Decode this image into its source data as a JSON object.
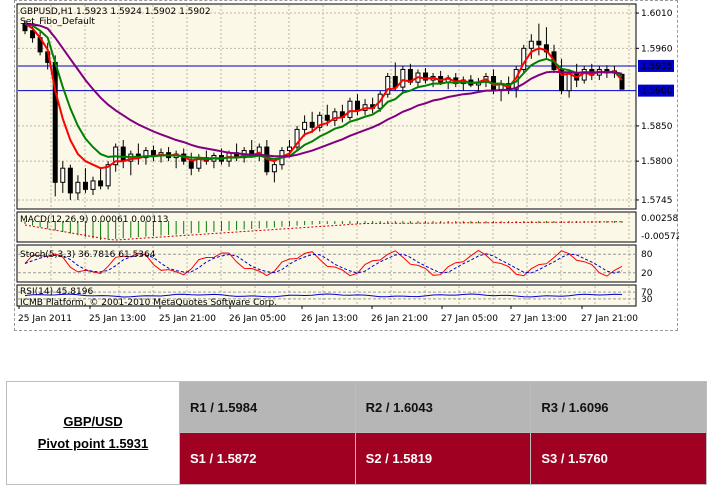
{
  "chart_data": {
    "type": "candlestick",
    "symbol_header": "GBPUSD,H1  1.5923 1.5924 1.5902 1.5902",
    "indicator_name": "Set_Fibo_Default",
    "price_axis_ticks": [
      "1.6010",
      "1.5960",
      "1.5935",
      "1.5900",
      "1.5850",
      "1.5800",
      "1.5745"
    ],
    "highlighted_levels": [
      "1.5935",
      "1.5900"
    ],
    "ylim": [
      1.5735,
      1.602
    ],
    "time_axis_ticks": [
      "25 Jan 2011",
      "25 Jan 13:00",
      "25 Jan 21:00",
      "26 Jan 05:00",
      "26 Jan 13:00",
      "26 Jan 21:00",
      "27 Jan 05:00",
      "27 Jan 13:00",
      "27 Jan 21:00"
    ],
    "candles": [
      {
        "o": 1.5995,
        "h": 1.6,
        "l": 1.598,
        "c": 1.5985
      },
      {
        "o": 1.5985,
        "h": 1.5998,
        "l": 1.5968,
        "c": 1.5975
      },
      {
        "o": 1.5975,
        "h": 1.5985,
        "l": 1.595,
        "c": 1.5955
      },
      {
        "o": 1.5955,
        "h": 1.5968,
        "l": 1.593,
        "c": 1.594
      },
      {
        "o": 1.594,
        "h": 1.595,
        "l": 1.575,
        "c": 1.577
      },
      {
        "o": 1.577,
        "h": 1.58,
        "l": 1.5755,
        "c": 1.579
      },
      {
        "o": 1.579,
        "h": 1.5795,
        "l": 1.5745,
        "c": 1.5755
      },
      {
        "o": 1.5755,
        "h": 1.578,
        "l": 1.5745,
        "c": 1.577
      },
      {
        "o": 1.577,
        "h": 1.579,
        "l": 1.5755,
        "c": 1.576
      },
      {
        "o": 1.576,
        "h": 1.5778,
        "l": 1.5752,
        "c": 1.5772
      },
      {
        "o": 1.5772,
        "h": 1.579,
        "l": 1.576,
        "c": 1.5765
      },
      {
        "o": 1.5765,
        "h": 1.58,
        "l": 1.576,
        "c": 1.5795
      },
      {
        "o": 1.5795,
        "h": 1.5825,
        "l": 1.5785,
        "c": 1.582
      },
      {
        "o": 1.582,
        "h": 1.583,
        "l": 1.579,
        "c": 1.58
      },
      {
        "o": 1.58,
        "h": 1.5815,
        "l": 1.578,
        "c": 1.581
      },
      {
        "o": 1.581,
        "h": 1.5825,
        "l": 1.5795,
        "c": 1.5805
      },
      {
        "o": 1.5805,
        "h": 1.582,
        "l": 1.5795,
        "c": 1.5815
      },
      {
        "o": 1.5815,
        "h": 1.5822,
        "l": 1.58,
        "c": 1.5808
      },
      {
        "o": 1.5808,
        "h": 1.5818,
        "l": 1.5798,
        "c": 1.5812
      },
      {
        "o": 1.5812,
        "h": 1.582,
        "l": 1.58,
        "c": 1.5805
      },
      {
        "o": 1.5805,
        "h": 1.5815,
        "l": 1.579,
        "c": 1.581
      },
      {
        "o": 1.581,
        "h": 1.5818,
        "l": 1.5795,
        "c": 1.58
      },
      {
        "o": 1.58,
        "h": 1.5812,
        "l": 1.578,
        "c": 1.579
      },
      {
        "o": 1.579,
        "h": 1.581,
        "l": 1.5785,
        "c": 1.5805
      },
      {
        "o": 1.5805,
        "h": 1.5815,
        "l": 1.5795,
        "c": 1.58
      },
      {
        "o": 1.58,
        "h": 1.5812,
        "l": 1.579,
        "c": 1.5808
      },
      {
        "o": 1.5808,
        "h": 1.5818,
        "l": 1.5795,
        "c": 1.58
      },
      {
        "o": 1.58,
        "h": 1.5815,
        "l": 1.5792,
        "c": 1.5812
      },
      {
        "o": 1.5812,
        "h": 1.5825,
        "l": 1.58,
        "c": 1.5805
      },
      {
        "o": 1.5805,
        "h": 1.582,
        "l": 1.5798,
        "c": 1.5815
      },
      {
        "o": 1.5815,
        "h": 1.583,
        "l": 1.5805,
        "c": 1.581
      },
      {
        "o": 1.581,
        "h": 1.5825,
        "l": 1.58,
        "c": 1.582
      },
      {
        "o": 1.582,
        "h": 1.583,
        "l": 1.578,
        "c": 1.5785
      },
      {
        "o": 1.5785,
        "h": 1.58,
        "l": 1.577,
        "c": 1.5795
      },
      {
        "o": 1.5795,
        "h": 1.582,
        "l": 1.5788,
        "c": 1.5815
      },
      {
        "o": 1.5815,
        "h": 1.583,
        "l": 1.5805,
        "c": 1.582
      },
      {
        "o": 1.582,
        "h": 1.585,
        "l": 1.5815,
        "c": 1.5845
      },
      {
        "o": 1.5845,
        "h": 1.5865,
        "l": 1.5835,
        "c": 1.5855
      },
      {
        "o": 1.5855,
        "h": 1.587,
        "l": 1.584,
        "c": 1.5848
      },
      {
        "o": 1.5848,
        "h": 1.587,
        "l": 1.5842,
        "c": 1.5865
      },
      {
        "o": 1.5865,
        "h": 1.588,
        "l": 1.585,
        "c": 1.5858
      },
      {
        "o": 1.5858,
        "h": 1.5875,
        "l": 1.585,
        "c": 1.587
      },
      {
        "o": 1.587,
        "h": 1.588,
        "l": 1.5855,
        "c": 1.5862
      },
      {
        "o": 1.5862,
        "h": 1.589,
        "l": 1.5858,
        "c": 1.5885
      },
      {
        "o": 1.5885,
        "h": 1.5895,
        "l": 1.5865,
        "c": 1.5872
      },
      {
        "o": 1.5872,
        "h": 1.5888,
        "l": 1.5865,
        "c": 1.588
      },
      {
        "o": 1.588,
        "h": 1.589,
        "l": 1.5868,
        "c": 1.5875
      },
      {
        "o": 1.5875,
        "h": 1.59,
        "l": 1.587,
        "c": 1.5895
      },
      {
        "o": 1.5895,
        "h": 1.5925,
        "l": 1.589,
        "c": 1.592
      },
      {
        "o": 1.592,
        "h": 1.594,
        "l": 1.59,
        "c": 1.5905
      },
      {
        "o": 1.5905,
        "h": 1.5935,
        "l": 1.5898,
        "c": 1.593
      },
      {
        "o": 1.593,
        "h": 1.5938,
        "l": 1.5908,
        "c": 1.5912
      },
      {
        "o": 1.5912,
        "h": 1.593,
        "l": 1.5905,
        "c": 1.5925
      },
      {
        "o": 1.5925,
        "h": 1.5932,
        "l": 1.591,
        "c": 1.5915
      },
      {
        "o": 1.5915,
        "h": 1.5925,
        "l": 1.5905,
        "c": 1.592
      },
      {
        "o": 1.592,
        "h": 1.5928,
        "l": 1.5908,
        "c": 1.5912
      },
      {
        "o": 1.5912,
        "h": 1.5922,
        "l": 1.5902,
        "c": 1.5918
      },
      {
        "o": 1.5918,
        "h": 1.5925,
        "l": 1.5905,
        "c": 1.591
      },
      {
        "o": 1.591,
        "h": 1.592,
        "l": 1.59,
        "c": 1.5915
      },
      {
        "o": 1.5915,
        "h": 1.5922,
        "l": 1.5905,
        "c": 1.5908
      },
      {
        "o": 1.5908,
        "h": 1.5918,
        "l": 1.5898,
        "c": 1.5912
      },
      {
        "o": 1.5912,
        "h": 1.5925,
        "l": 1.5905,
        "c": 1.592
      },
      {
        "o": 1.592,
        "h": 1.593,
        "l": 1.5895,
        "c": 1.59
      },
      {
        "o": 1.59,
        "h": 1.5915,
        "l": 1.5885,
        "c": 1.591
      },
      {
        "o": 1.591,
        "h": 1.592,
        "l": 1.5895,
        "c": 1.5902
      },
      {
        "o": 1.5902,
        "h": 1.5935,
        "l": 1.589,
        "c": 1.593
      },
      {
        "o": 1.593,
        "h": 1.5965,
        "l": 1.5925,
        "c": 1.596
      },
      {
        "o": 1.596,
        "h": 1.598,
        "l": 1.5945,
        "c": 1.597
      },
      {
        "o": 1.597,
        "h": 1.5995,
        "l": 1.595,
        "c": 1.5965
      },
      {
        "o": 1.5965,
        "h": 1.599,
        "l": 1.5945,
        "c": 1.5955
      },
      {
        "o": 1.5955,
        "h": 1.5965,
        "l": 1.5925,
        "c": 1.593
      },
      {
        "o": 1.593,
        "h": 1.5945,
        "l": 1.5895,
        "c": 1.59
      },
      {
        "o": 1.59,
        "h": 1.593,
        "l": 1.589,
        "c": 1.5925
      },
      {
        "o": 1.5925,
        "h": 1.5938,
        "l": 1.5905,
        "c": 1.5915
      },
      {
        "o": 1.5915,
        "h": 1.5935,
        "l": 1.591,
        "c": 1.593
      },
      {
        "o": 1.593,
        "h": 1.5938,
        "l": 1.5915,
        "c": 1.5922
      },
      {
        "o": 1.5922,
        "h": 1.5935,
        "l": 1.5915,
        "c": 1.593
      },
      {
        "o": 1.593,
        "h": 1.5936,
        "l": 1.5918,
        "c": 1.5925
      },
      {
        "o": 1.5925,
        "h": 1.5935,
        "l": 1.5918,
        "c": 1.5928
      },
      {
        "o": 1.5923,
        "h": 1.5924,
        "l": 1.5902,
        "c": 1.5902
      }
    ],
    "ma_series": [
      {
        "name": "",
        "color": "#ff0000",
        "values": [
          1.5995,
          1.5988,
          1.5975,
          1.5958,
          1.59,
          1.586,
          1.583,
          1.581,
          1.58,
          1.5795,
          1.579,
          1.5792,
          1.58,
          1.58,
          1.5803,
          1.5804,
          1.5807,
          1.5807,
          1.5809,
          1.5808,
          1.5809,
          1.5806,
          1.5801,
          1.5803,
          1.5802,
          1.5804,
          1.5803,
          1.5806,
          1.5805,
          1.5808,
          1.5808,
          1.5812,
          1.5803,
          1.58,
          1.5806,
          1.5811,
          1.5825,
          1.5838,
          1.5842,
          1.5851,
          1.5854,
          1.5861,
          1.5862,
          1.5871,
          1.5871,
          1.5875,
          1.5875,
          1.5885,
          1.5902,
          1.5903,
          1.5915,
          1.5913,
          1.5919,
          1.5917,
          1.5918,
          1.5915,
          1.5917,
          1.5913,
          1.5914,
          1.5911,
          1.5912,
          1.5916,
          1.5908,
          1.5909,
          1.5905,
          1.5918,
          1.5939,
          1.5955,
          1.596,
          1.5957,
          1.5943,
          1.5922,
          1.5924,
          1.5919,
          1.5925,
          1.5923,
          1.5927,
          1.5926,
          1.5927,
          1.5915
        ]
      },
      {
        "name": "",
        "color": "#008000",
        "values": [
          1.5995,
          1.5992,
          1.5985,
          1.5975,
          1.594,
          1.5905,
          1.5875,
          1.585,
          1.5832,
          1.582,
          1.581,
          1.5806,
          1.5807,
          1.5806,
          1.5806,
          1.5806,
          1.5807,
          1.5807,
          1.5808,
          1.5808,
          1.5808,
          1.5807,
          1.5805,
          1.5805,
          1.5804,
          1.5804,
          1.5804,
          1.5805,
          1.5805,
          1.5806,
          1.5806,
          1.5808,
          1.5805,
          1.5803,
          1.5805,
          1.5807,
          1.5815,
          1.5823,
          1.5828,
          1.5835,
          1.584,
          1.5846,
          1.5849,
          1.5856,
          1.5859,
          1.5863,
          1.5866,
          1.5873,
          1.5884,
          1.5888,
          1.5897,
          1.59,
          1.5905,
          1.5907,
          1.591,
          1.591,
          1.5912,
          1.5911,
          1.5912,
          1.5911,
          1.5911,
          1.5913,
          1.591,
          1.591,
          1.5908,
          1.5913,
          1.5925,
          1.5936,
          1.5942,
          1.5945,
          1.5941,
          1.5931,
          1.5929,
          1.5925,
          1.5926,
          1.5925,
          1.5926,
          1.5926,
          1.5926,
          1.592
        ]
      },
      {
        "name": "",
        "color": "#800080",
        "values": [
          1.5995,
          1.5994,
          1.5992,
          1.5988,
          1.5975,
          1.596,
          1.5945,
          1.593,
          1.5915,
          1.5902,
          1.589,
          1.588,
          1.5872,
          1.5865,
          1.5858,
          1.5852,
          1.5847,
          1.5842,
          1.5838,
          1.5834,
          1.583,
          1.5827,
          1.5823,
          1.582,
          1.5818,
          1.5816,
          1.5814,
          1.5812,
          1.5811,
          1.581,
          1.5809,
          1.5809,
          1.5808,
          1.5807,
          1.5807,
          1.5807,
          1.5809,
          1.5812,
          1.5815,
          1.5819,
          1.5823,
          1.5827,
          1.5831,
          1.5836,
          1.584,
          1.5844,
          1.5848,
          1.5853,
          1.5859,
          1.5864,
          1.587,
          1.5874,
          1.5879,
          1.5882,
          1.5886,
          1.5888,
          1.5891,
          1.5893,
          1.5895,
          1.5896,
          1.5898,
          1.59,
          1.59,
          1.5901,
          1.5901,
          1.5904,
          1.591,
          1.5917,
          1.5922,
          1.5926,
          1.5927,
          1.5926,
          1.5926,
          1.5925,
          1.5926,
          1.5926,
          1.5926,
          1.5926,
          1.5926,
          1.5924
        ]
      }
    ],
    "macd": {
      "label": "MACD(12,26,9) 0.00061 0.00113",
      "axis_ticks": [
        "0.00258",
        "-0.00572"
      ]
    },
    "stoch": {
      "label": "Stoch(5,3,3) 36.7816 61.5364",
      "axis_ticks": [
        "80",
        "20"
      ]
    },
    "rsi": {
      "label": "RSI(14) 45.8196",
      "axis_ticks": [
        "70",
        "30"
      ]
    },
    "copyright": "ICMB Platform, © 2001-2010 MetaQuotes Software Corp."
  },
  "pivot_table": {
    "pair": "GBP/USD",
    "pivot": "Pivot point 1.5931",
    "resistance": [
      "R1 / 1.5984",
      "R2 / 1.6043",
      "R3 / 1.6096"
    ],
    "support": [
      "S1 / 1.5872",
      "S2 / 1.5819",
      "S3 / 1.5760"
    ]
  }
}
